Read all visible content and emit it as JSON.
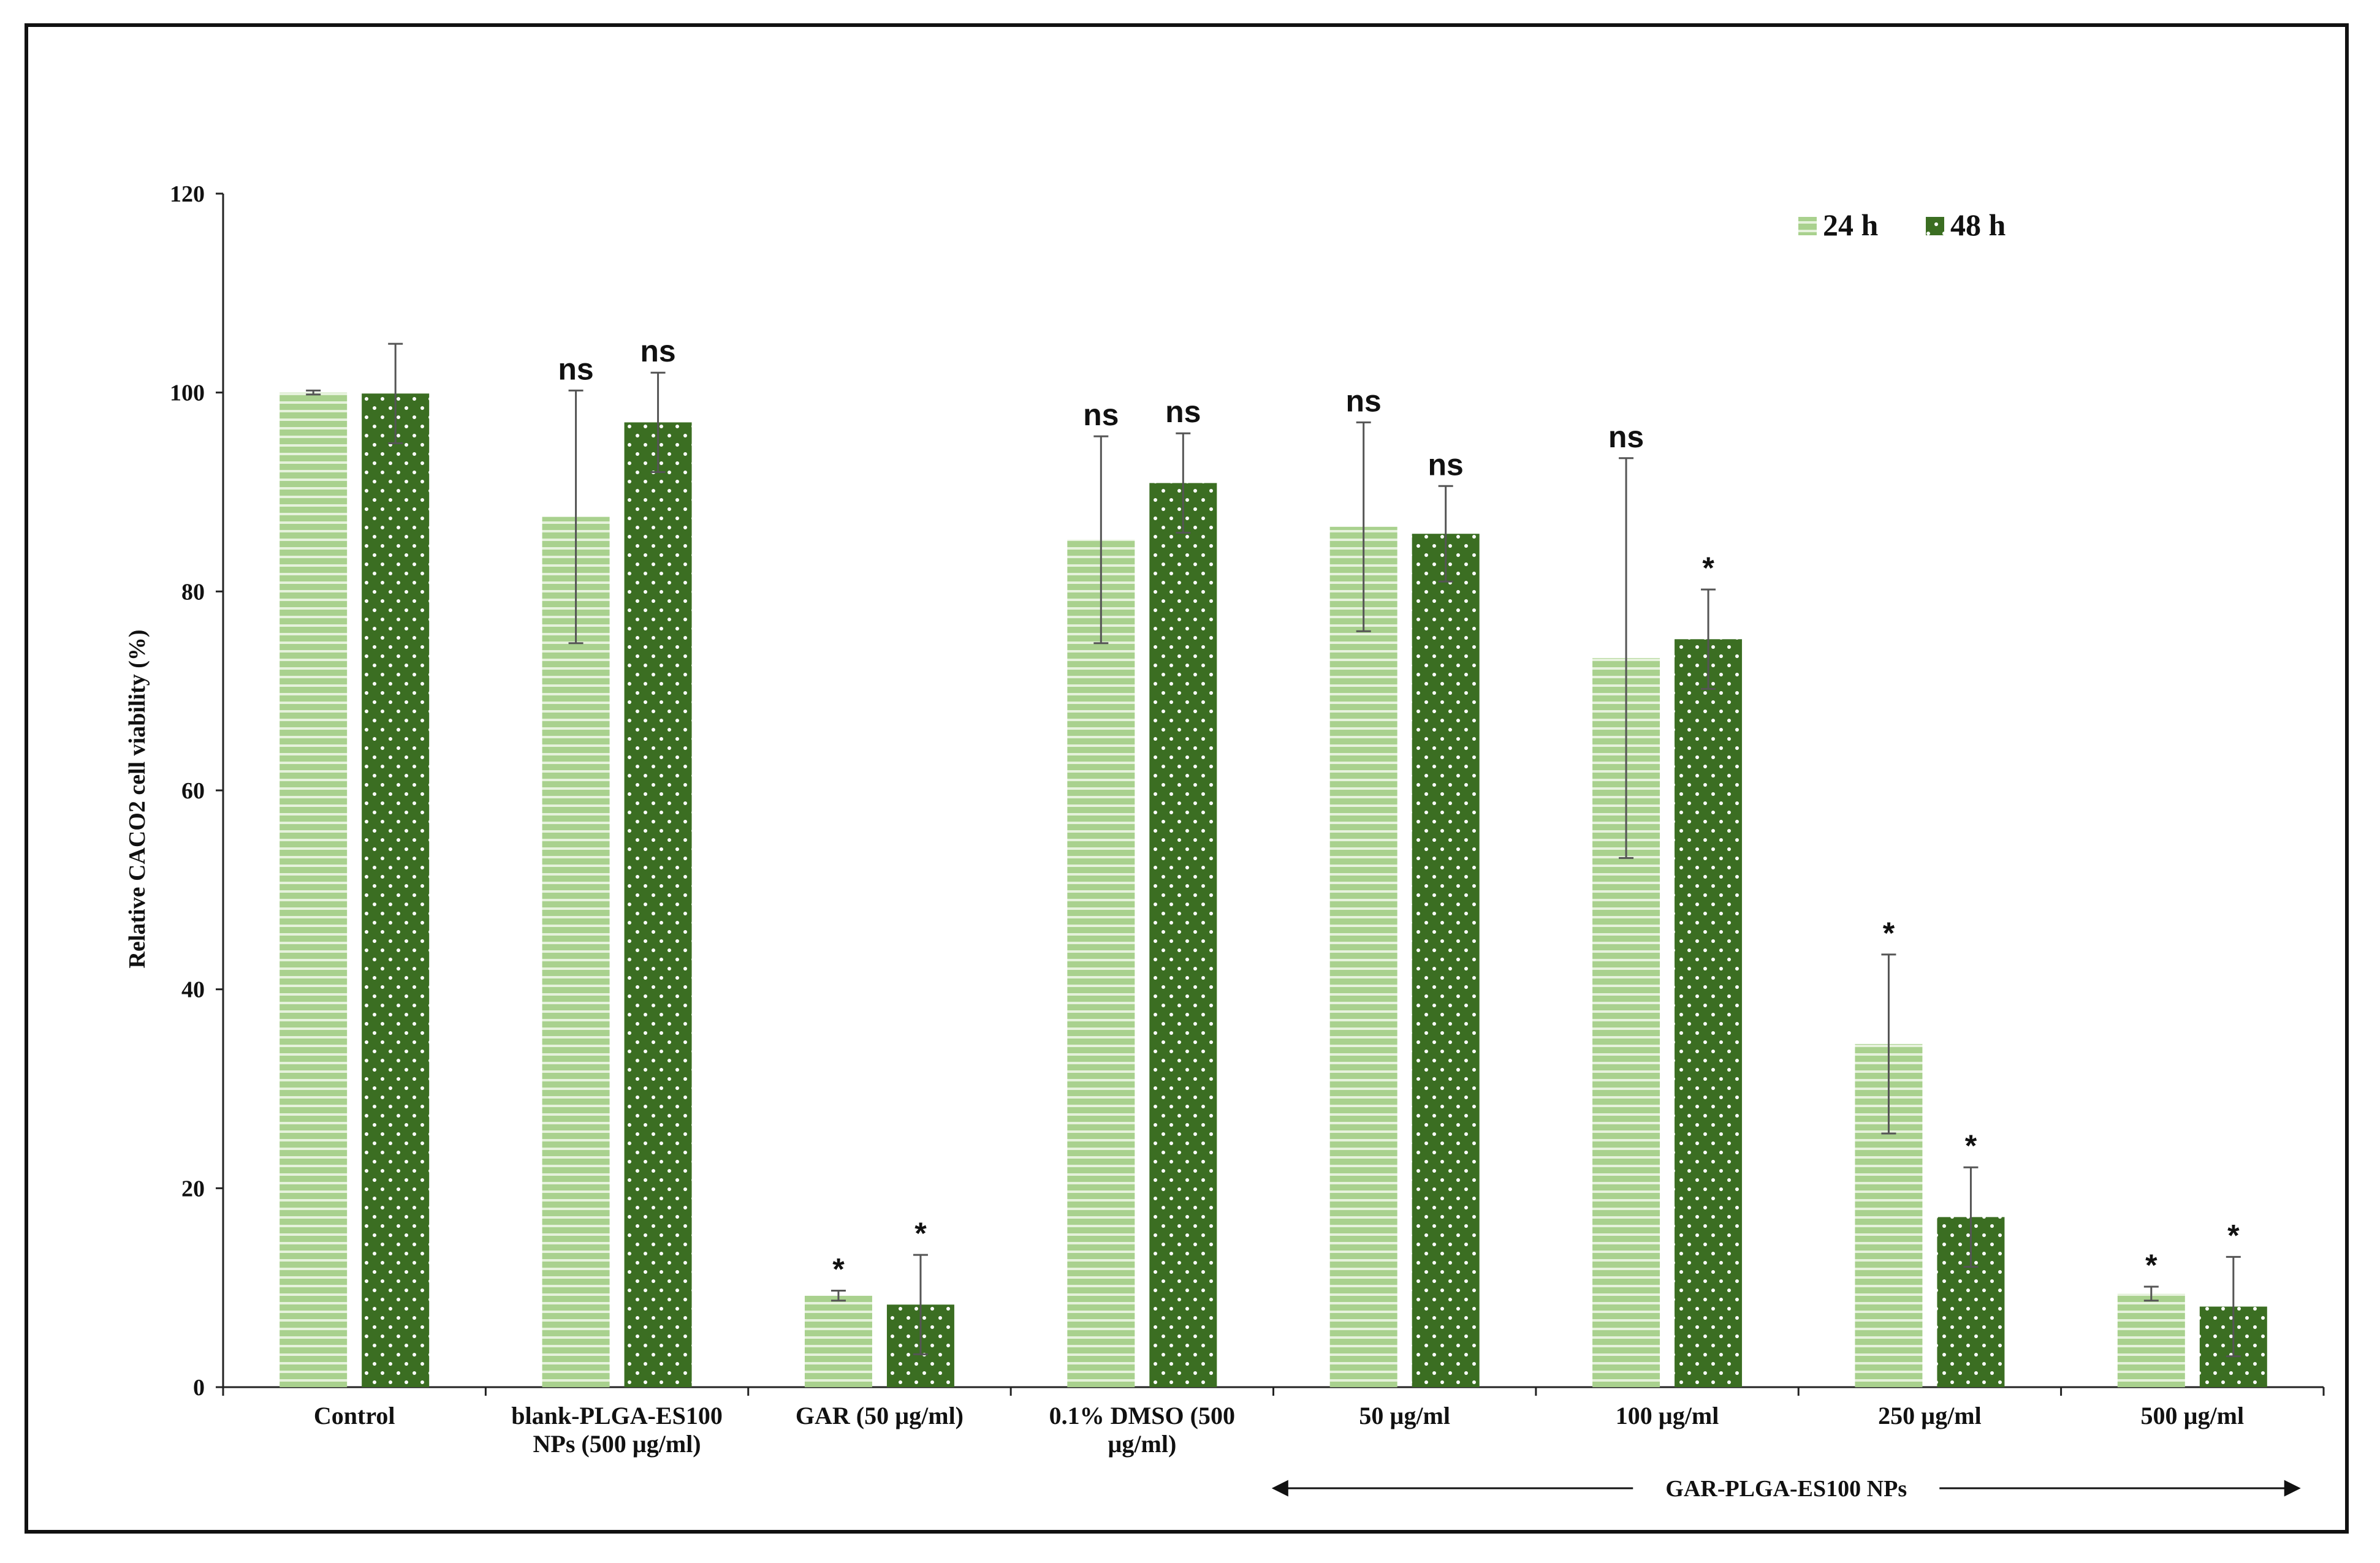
{
  "chart_data": {
    "type": "bar",
    "ylabel": "Relative CACO2 cell viability (%)",
    "xlabel": "",
    "ylim": [
      0,
      120
    ],
    "yticks": [
      0,
      20,
      40,
      60,
      80,
      100,
      120
    ],
    "grid": false,
    "legend_position": "top-right",
    "categories": [
      [
        "Control"
      ],
      [
        "blank-PLGA-ES100",
        "NPs (500  µg/ml)"
      ],
      [
        "GAR (50  µg/ml)"
      ],
      [
        "0.1% DMSO (500",
        "µg/ml)"
      ],
      [
        "50 µg/ml"
      ],
      [
        "100 µg/ml"
      ],
      [
        "250 µg/ml"
      ],
      [
        "500 µg/ml"
      ]
    ],
    "series": [
      {
        "name": "24 h",
        "color": "#a9d18e",
        "pattern": "horizontal-stripes",
        "values": [
          100,
          87.5,
          9.2,
          85.2,
          86.5,
          73.3,
          34.5,
          9.4
        ],
        "errors": [
          0.2,
          12.7,
          0.5,
          10.4,
          10.5,
          20.1,
          9.0,
          0.7
        ],
        "annotations": [
          "",
          "ns",
          "*",
          "ns",
          "ns",
          "ns",
          "*",
          "*"
        ]
      },
      {
        "name": "48 h",
        "color": "#3b6e22",
        "pattern": "white-dots",
        "values": [
          99.9,
          97.0,
          8.3,
          90.9,
          85.8,
          75.2,
          17.1,
          8.1
        ],
        "errors": [
          5.0,
          5.0,
          5.0,
          5.0,
          4.8,
          5.0,
          5.0,
          5.0
        ],
        "annotations": [
          "",
          "ns",
          "*",
          "ns",
          "ns",
          "*",
          "*",
          "*"
        ]
      }
    ],
    "group_annotation": {
      "label": "GAR-PLGA-ES100 NPs",
      "first_category": 4,
      "last_category": 7
    }
  }
}
